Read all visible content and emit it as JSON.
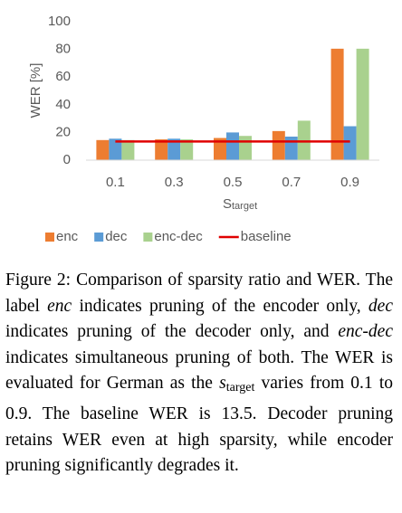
{
  "chart_data": {
    "type": "bar",
    "ylabel": "WER [%]",
    "xlabel": "S",
    "xlabel_sub": "target",
    "categories": [
      "0.1",
      "0.3",
      "0.5",
      "0.7",
      "0.9"
    ],
    "series": [
      {
        "name": "enc",
        "color": "#ed7d31",
        "values": [
          14.5,
          15,
          16,
          21,
          80.5
        ]
      },
      {
        "name": "dec",
        "color": "#5b9bd5",
        "values": [
          15.5,
          15.5,
          20,
          17,
          24.5
        ]
      },
      {
        "name": "enc-dec",
        "color": "#a9d18e",
        "values": [
          14.5,
          15,
          17.5,
          28.5,
          80.5
        ]
      }
    ],
    "baseline": {
      "name": "baseline",
      "color": "#e00000",
      "value": 13.5
    },
    "ylim": [
      0,
      100
    ],
    "yticks": [
      0,
      20,
      40,
      60,
      80,
      100
    ],
    "grid": false
  },
  "caption": {
    "segments": [
      {
        "text": "Figure 2: Comparison of sparsity ratio and WER. The label ",
        "style": "normal"
      },
      {
        "text": "enc",
        "style": "italic"
      },
      {
        "text": " indicates pruning of the encoder only, ",
        "style": "normal"
      },
      {
        "text": "dec",
        "style": "italic"
      },
      {
        "text": " indicates pruning of the decoder only, and ",
        "style": "normal"
      },
      {
        "text": "enc-dec",
        "style": "italic"
      },
      {
        "text": " indicates simultaneous pruning of both. The WER is evaluated for German as the ",
        "style": "normal"
      },
      {
        "text": "s",
        "style": "italic"
      },
      {
        "text": "target",
        "style": "sub"
      },
      {
        "text": " varies from 0.1 to 0.9. The baseline WER is 13.5. Decoder pruning retains WER even at high sparsity, while encoder pruning significantly degrades it.",
        "style": "normal"
      }
    ]
  }
}
